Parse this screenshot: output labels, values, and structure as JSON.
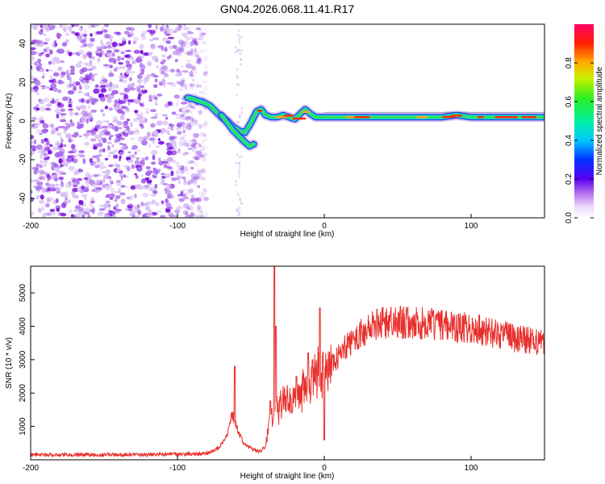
{
  "title": "GN04.2026.068.11.41.R17",
  "colors": {
    "snr_line": "#e8302c",
    "axis": "#000000",
    "scatter_light": "#d6bdf3",
    "scatter_mid": "#a869ec",
    "scatter_dark": "#7a12e0"
  },
  "chart_data": [
    {
      "type": "heatmap",
      "id": "spectrogram",
      "title": "GN04.2026.068.11.41.R17",
      "xlabel": "Height of straight line (km)",
      "ylabel": "Frequency (Hz)",
      "xlim": [
        -200,
        150
      ],
      "ylim": [
        -50,
        50
      ],
      "xticks": [
        -200,
        -100,
        0,
        100
      ],
      "xtick_labels": [
        "-200",
        "-100",
        "0",
        "100"
      ],
      "yticks": [
        -40,
        -20,
        0,
        20,
        40
      ],
      "ytick_labels": [
        "-40",
        "-20",
        "0",
        "20",
        "40"
      ],
      "noise_region_x": [
        -200,
        -80
      ],
      "ridge": {
        "x": [
          -93,
          -90,
          -86,
          -82,
          -78,
          -74,
          -70,
          -66,
          -62,
          -58,
          -54,
          -50,
          -46,
          -43,
          -40,
          -36,
          -32,
          -28,
          -24,
          -20,
          -16,
          -13,
          -10,
          -6,
          -2,
          0,
          20,
          40,
          60,
          80,
          90,
          100,
          120,
          150
        ],
        "y": [
          12,
          11.5,
          10.5,
          9.5,
          8,
          5,
          2,
          0,
          -3,
          -5,
          -6,
          -1,
          5,
          6,
          3,
          2,
          2,
          3,
          2,
          1,
          4,
          6,
          4,
          2,
          2,
          2,
          2,
          2,
          2,
          2,
          3,
          2,
          2,
          2
        ]
      },
      "ridge_branch": {
        "x": [
          -70,
          -66,
          -62,
          -58,
          -54,
          -51,
          -48
        ],
        "y": [
          3,
          -1,
          -5,
          -8,
          -11,
          -13,
          -12
        ]
      },
      "colorbar": {
        "label": "Normalized spectral amplitude",
        "range": [
          0.0,
          1.0
        ],
        "ticks": [
          0.0,
          0.2,
          0.4,
          0.6,
          0.8
        ],
        "tick_labels": [
          "0.0",
          "0.2",
          "0.4",
          "0.6",
          "0.8"
        ],
        "colormap": "hsv-rainbow (white, magenta, blue, cyan, green, yellow, orange, red, magenta)"
      }
    },
    {
      "type": "line",
      "id": "snr",
      "xlabel": "Height of straight line (km)",
      "ylabel": "SNR (10 * v/v)",
      "xlim": [
        -200,
        150
      ],
      "ylim": [
        0,
        5800
      ],
      "xticks": [
        -200,
        -100,
        0,
        100
      ],
      "xtick_labels": [
        "-200",
        "-100",
        "0",
        "100"
      ],
      "yticks": [
        1000,
        2000,
        3000,
        4000,
        5000
      ],
      "ytick_labels": [
        "1000",
        "2000",
        "3000",
        "4000",
        "5000"
      ],
      "series": [
        {
          "name": "SNR",
          "x": [
            -200,
            -180,
            -150,
            -120,
            -100,
            -90,
            -80,
            -72,
            -68,
            -65,
            -63,
            -61,
            -59,
            -57,
            -55,
            -52,
            -48,
            -44,
            -40,
            -37,
            -35,
            -34,
            -33,
            -31,
            -28,
            -25,
            -20,
            -15,
            -10,
            -5,
            -2,
            0,
            3,
            8,
            15,
            25,
            35,
            45,
            55,
            65,
            75,
            85,
            95,
            105,
            115,
            125,
            135,
            145,
            150
          ],
          "values": [
            150,
            150,
            155,
            160,
            170,
            175,
            190,
            350,
            600,
            900,
            1400,
            1200,
            900,
            700,
            500,
            400,
            300,
            250,
            400,
            1500,
            1200,
            1500,
            1500,
            1600,
            1800,
            1800,
            1900,
            2100,
            2300,
            2500,
            2600,
            2600,
            2700,
            3000,
            3400,
            3800,
            4050,
            4150,
            4100,
            4100,
            4050,
            4000,
            3950,
            3900,
            3800,
            3700,
            3600,
            3550,
            3500
          ],
          "spikes": [
            {
              "x": -61,
              "value": 2800
            },
            {
              "x": -34,
              "value": 5800
            },
            {
              "x": -33,
              "value": 4000
            },
            {
              "x": -19,
              "value": 2500
            },
            {
              "x": -11,
              "value": 3200
            },
            {
              "x": -8,
              "value": 3000
            },
            {
              "x": -3,
              "value": 4550
            },
            {
              "x": 0,
              "value": 600
            }
          ]
        }
      ]
    }
  ]
}
